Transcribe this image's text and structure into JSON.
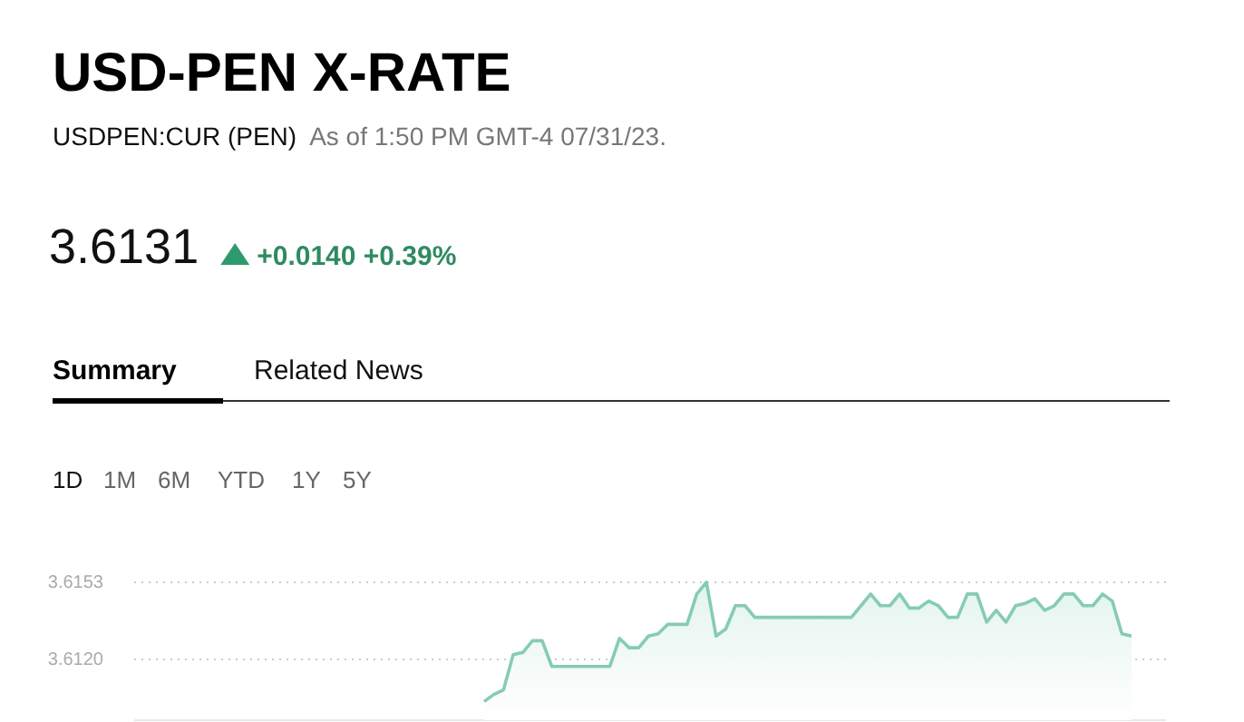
{
  "chart_data": {
    "type": "area",
    "title": "USD-PEN X-RATE",
    "subtitle": "USDPEN:CUR (PEN)",
    "annotations": [
      "As of 1:50 PM GMT-4 07/31/23.",
      "3.6131",
      "+0.0140 +0.39%",
      "Summary",
      "Related News",
      "1D",
      "1M",
      "6M",
      "YTD",
      "1Y",
      "5Y"
    ],
    "categories": [
      null,
      null,
      null,
      null,
      null,
      null,
      null,
      null,
      null,
      null,
      null,
      null,
      null,
      null,
      null,
      null,
      null,
      null,
      null,
      null,
      null,
      null,
      null,
      null,
      null,
      null,
      null,
      null,
      null,
      null,
      null,
      null,
      null,
      null,
      null,
      null,
      null,
      null,
      null,
      null,
      null,
      null,
      null,
      null,
      null,
      null,
      null,
      null,
      null,
      null,
      null,
      null,
      null,
      null,
      null,
      null,
      null,
      null,
      null,
      null,
      null,
      null,
      null,
      null,
      null,
      null,
      null,
      null
    ],
    "series": [
      {
        "color": "#86ccb2",
        "values": [
          3.6102,
          3.6105,
          3.6107,
          3.6122,
          3.6123,
          3.6128,
          3.6128,
          3.6117,
          3.6117,
          3.6117,
          3.6117,
          3.6117,
          3.6117,
          3.6117,
          3.6129,
          3.6125,
          3.6125,
          3.613,
          3.6131,
          3.6135,
          3.6135,
          3.6135,
          3.6148,
          3.6153,
          3.613,
          3.6133,
          3.6143,
          3.6143,
          3.6138,
          3.6138,
          3.6138,
          3.6138,
          3.6138,
          3.6138,
          3.6138,
          3.6138,
          3.6138,
          3.6138,
          3.6138,
          3.6143,
          3.6148,
          3.6143,
          3.6143,
          3.6148,
          3.6142,
          3.6142,
          3.6145,
          3.6143,
          3.6138,
          3.6138,
          3.6148,
          3.6148,
          3.6136,
          3.6141,
          3.6136,
          3.6143,
          3.6144,
          3.6146,
          3.6141,
          3.6143,
          3.6148,
          3.6148,
          3.6143,
          3.6143,
          3.6148,
          3.6145,
          3.6131,
          3.613
        ]
      }
    ],
    "ylim": [
      3.6094,
      3.6153
    ],
    "yticks": [
      {
        "value": 3.612,
        "label": "3.6120"
      },
      3.6153
    ],
    "grid": "y",
    "tick_labels": "y",
    "marker": "none",
    "line_style": "solid"
  }
}
